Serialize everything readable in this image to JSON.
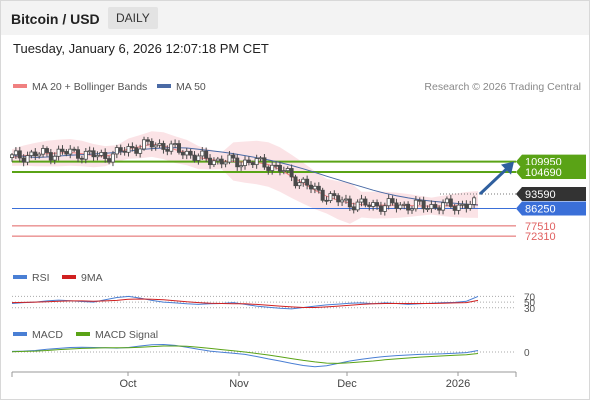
{
  "header": {
    "instrument": "Bitcoin / USD",
    "timeframe": "DAILY",
    "datetime": "Tuesday, January 6, 2026 12:07:18 PM CET"
  },
  "legend": {
    "ma20_bb": "MA 20 + Bollinger Bands",
    "ma50": "MA 50",
    "copyright": "Research © 2026 Trading Central",
    "rsi": "RSI",
    "rsi_ma": "9MA",
    "macd": "MACD",
    "macd_signal": "MACD Signal"
  },
  "colors": {
    "candle": "#4a4a4a",
    "ma20": "#f08080",
    "bollinger_fill": "#fadadd",
    "ma50": "#4a6aa5",
    "resistance": "#5aa316",
    "pivot": "#3a6fd8",
    "support": "#e06060",
    "current": "#333333",
    "arrow": "#2f5f9e",
    "rsi": "#4a7fd4",
    "rsi_ma": "#d02020",
    "macd": "#4a7fd4",
    "macd_signal": "#5aa316"
  },
  "chart_data": [
    {
      "type": "candlestick",
      "title": "Bitcoin / USD",
      "x_ticks": [
        "Oct",
        "Nov",
        "Dec",
        "2026"
      ],
      "price_levels": [
        {
          "label": "109950",
          "value": 109950,
          "kind": "resistance"
        },
        {
          "label": "104690",
          "value": 104690,
          "kind": "resistance"
        },
        {
          "label": "93590",
          "value": 93590,
          "kind": "current"
        },
        {
          "label": "86250",
          "value": 86250,
          "kind": "pivot"
        },
        {
          "label": "77510",
          "value": 77510,
          "kind": "support"
        },
        {
          "label": "72310",
          "value": 72310,
          "kind": "support"
        }
      ],
      "forecast": {
        "from": 93590,
        "to": 109950,
        "direction": "up"
      },
      "series": [
        {
          "name": "MA 20 + Bollinger Bands",
          "values": [
            112000,
            113000,
            113500,
            114000,
            114300,
            114600,
            114000,
            113000,
            112700,
            114000,
            116500,
            117500,
            118800,
            118000,
            116000,
            114500,
            112000,
            111000,
            110300,
            110000,
            109700,
            109500,
            108500,
            106000,
            102500,
            99000,
            95500,
            92500,
            90400,
            89000,
            88200,
            88000,
            88000,
            87900,
            87800,
            87600,
            87500,
            87600,
            87800,
            88100,
            88300
          ]
        },
        {
          "name": "MA 50",
          "values": [
            113000,
            112700,
            112000,
            112300,
            112800,
            113200,
            113500,
            113800,
            114200,
            114600,
            115200,
            116000,
            116500,
            116800,
            117000,
            116800,
            116200,
            115500,
            114800,
            114000,
            113000,
            111900,
            110800,
            109500,
            108000,
            106300,
            104500,
            102600,
            100800,
            99000,
            97300,
            95500,
            94000,
            92700,
            91600,
            90700,
            90000,
            89400,
            88900,
            88500,
            88000
          ]
        }
      ]
    },
    {
      "type": "line",
      "title": "RSI",
      "yticks": [
        70,
        50,
        30
      ],
      "ylim": [
        20,
        80
      ],
      "series": [
        {
          "name": "RSI",
          "values": [
            45,
            48,
            50,
            54,
            57,
            55,
            52,
            50,
            58,
            66,
            70,
            64,
            56,
            50,
            47,
            44,
            42,
            44,
            45,
            48,
            42,
            36,
            32,
            28,
            26,
            31,
            36,
            40,
            43,
            46,
            47,
            44,
            47,
            45,
            42,
            44,
            46,
            48,
            49,
            53,
            70
          ]
        },
        {
          "name": "9MA",
          "values": [
            48,
            49,
            50,
            51,
            53,
            54,
            54,
            53,
            54,
            56,
            60,
            61,
            60,
            58,
            55,
            51,
            48,
            46,
            45,
            44,
            44,
            42,
            39,
            36,
            33,
            31,
            31,
            33,
            36,
            39,
            42,
            44,
            45,
            45,
            45,
            45,
            45,
            46,
            47,
            48,
            56
          ]
        }
      ]
    },
    {
      "type": "line",
      "title": "MACD",
      "yticks": [
        0
      ],
      "ylim": [
        -6,
        4
      ],
      "series": [
        {
          "name": "MACD",
          "values": [
            0.2,
            0.3,
            0.5,
            0.9,
            1.2,
            1.5,
            1.6,
            1.5,
            1.4,
            1.3,
            1.5,
            2.0,
            2.4,
            2.5,
            2.2,
            1.6,
            0.9,
            0.3,
            -0.1,
            -0.4,
            -0.8,
            -1.5,
            -2.3,
            -3.0,
            -3.8,
            -4.5,
            -4.9,
            -4.6,
            -3.8,
            -3.0,
            -2.4,
            -1.9,
            -1.5,
            -1.2,
            -1.0,
            -0.8,
            -0.7,
            -0.6,
            -0.4,
            -0.2,
            0.5
          ]
        },
        {
          "name": "MACD Signal",
          "values": [
            0.1,
            0.2,
            0.3,
            0.5,
            0.8,
            1.0,
            1.2,
            1.3,
            1.4,
            1.4,
            1.4,
            1.6,
            1.8,
            2.0,
            2.0,
            1.9,
            1.6,
            1.2,
            0.8,
            0.4,
            0.0,
            -0.5,
            -1.0,
            -1.6,
            -2.2,
            -2.8,
            -3.3,
            -3.7,
            -3.8,
            -3.6,
            -3.3,
            -3.0,
            -2.6,
            -2.3,
            -2.0,
            -1.7,
            -1.5,
            -1.3,
            -1.1,
            -0.9,
            -0.5
          ]
        }
      ]
    }
  ]
}
